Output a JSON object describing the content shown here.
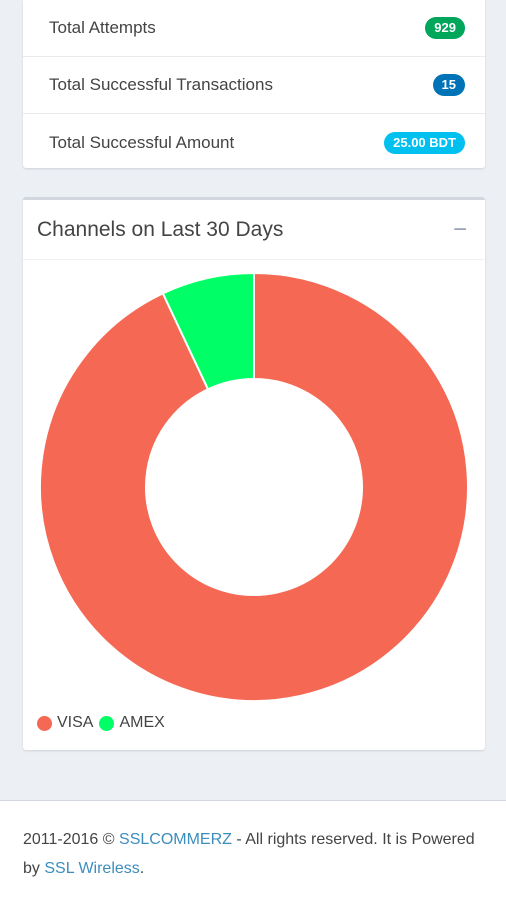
{
  "stats": [
    {
      "label": "Total Attempts",
      "badge": "929",
      "color": "#00a65a"
    },
    {
      "label": "Total Successful Transactions",
      "badge": "15",
      "color": "#0073b7"
    },
    {
      "label": "Total Successful Amount",
      "badge": "25.00 BDT",
      "color": "#00c0ef"
    }
  ],
  "chart": {
    "title": "Channels on Last 30 Days",
    "collapse_icon": "−"
  },
  "chart_data": {
    "type": "pie",
    "variant": "donut",
    "categories": [
      "VISA",
      "AMEX"
    ],
    "values": [
      93,
      7
    ],
    "colors": [
      "#f56954",
      "#00ff66"
    ],
    "legend": "bottom-left"
  },
  "footer": {
    "years": "2011-2016 © ",
    "link1": "SSLCOMMERZ",
    "middle": " - All rights reserved. It is Powered by ",
    "link2": "SSL Wireless",
    "end": "."
  }
}
